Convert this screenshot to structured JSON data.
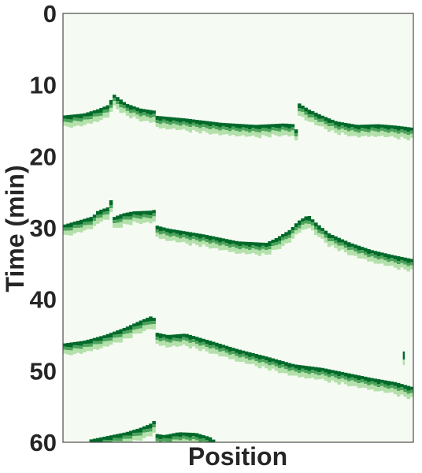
{
  "chart_data": {
    "type": "heatmap",
    "title": "",
    "xlabel": "Position",
    "ylabel": "Time (min)",
    "x_tick_labels": [],
    "y_axis": {
      "inverted": true,
      "range": [
        0,
        60
      ],
      "ticks": [
        0,
        10,
        20,
        30,
        40,
        50,
        60
      ]
    },
    "x_range": [
      0,
      1
    ],
    "grid": false,
    "legend": "none",
    "colormap": "Greens",
    "colors": {
      "background": "#f5fbf2",
      "light": "#b4e0ab",
      "mid": "#4ba35a",
      "dark": "#00692a",
      "frame": "#4d4d4d",
      "text": "#262626"
    },
    "bands": [
      {
        "name": "",
        "breaks": [],
        "trace": [
          [
            0.0,
            14.3
          ],
          [
            0.06,
            14.0
          ],
          [
            0.1,
            13.4
          ],
          [
            0.13,
            12.8
          ],
          [
            0.14,
            11.8
          ],
          [
            0.135,
            11.0
          ],
          [
            0.15,
            11.5
          ],
          [
            0.18,
            12.6
          ],
          [
            0.22,
            13.3
          ],
          [
            0.26,
            13.6
          ],
          [
            0.261,
            14.3
          ],
          [
            0.35,
            14.7
          ],
          [
            0.45,
            15.3
          ],
          [
            0.55,
            15.6
          ],
          [
            0.63,
            15.4
          ],
          [
            0.66,
            15.5
          ],
          [
            0.667,
            16.5
          ],
          [
            0.668,
            12.4
          ],
          [
            0.7,
            13.4
          ],
          [
            0.74,
            14.3
          ],
          [
            0.78,
            15.1
          ],
          [
            0.84,
            15.6
          ],
          [
            0.9,
            15.5
          ],
          [
            0.95,
            15.7
          ],
          [
            1.0,
            16.0
          ]
        ]
      },
      {
        "name": "",
        "breaks": [],
        "trace": [
          [
            0.0,
            29.6
          ],
          [
            0.05,
            28.9
          ],
          [
            0.085,
            28.4
          ],
          [
            0.1,
            27.6
          ],
          [
            0.13,
            27.1
          ],
          [
            0.131,
            25.5
          ],
          [
            0.14,
            26.5
          ],
          [
            0.145,
            28.5
          ],
          [
            0.17,
            28.0
          ],
          [
            0.2,
            27.7
          ],
          [
            0.25,
            27.6
          ],
          [
            0.26,
            27.5
          ],
          [
            0.261,
            29.6
          ],
          [
            0.3,
            30.1
          ],
          [
            0.4,
            30.9
          ],
          [
            0.5,
            31.9
          ],
          [
            0.58,
            32.1
          ],
          [
            0.61,
            31.4
          ],
          [
            0.65,
            30.2
          ],
          [
            0.67,
            29.1
          ],
          [
            0.7,
            28.2
          ],
          [
            0.72,
            29.2
          ],
          [
            0.76,
            30.8
          ],
          [
            0.82,
            32.1
          ],
          [
            0.88,
            33.1
          ],
          [
            0.94,
            33.8
          ],
          [
            1.0,
            34.4
          ]
        ]
      },
      {
        "name": "",
        "breaks": [],
        "trace": [
          [
            0.0,
            46.2
          ],
          [
            0.06,
            45.8
          ],
          [
            0.12,
            45.0
          ],
          [
            0.18,
            43.9
          ],
          [
            0.22,
            43.0
          ],
          [
            0.25,
            42.4
          ],
          [
            0.26,
            42.6
          ],
          [
            0.261,
            44.6
          ],
          [
            0.3,
            45.0
          ],
          [
            0.35,
            44.8
          ],
          [
            0.42,
            45.8
          ],
          [
            0.5,
            47.0
          ],
          [
            0.58,
            48.0
          ],
          [
            0.66,
            49.1
          ],
          [
            0.74,
            49.6
          ],
          [
            0.8,
            50.2
          ],
          [
            0.88,
            51.0
          ],
          [
            0.95,
            51.6
          ],
          [
            0.97,
            51.9
          ],
          [
            1.0,
            52.3
          ]
        ],
        "blip": [
          0.97,
          47.3,
          49.2
        ]
      },
      {
        "name": "",
        "breaks": [],
        "trace": [
          [
            0.08,
            59.6
          ],
          [
            0.13,
            59.1
          ],
          [
            0.18,
            58.6
          ],
          [
            0.22,
            58.0
          ],
          [
            0.25,
            57.4
          ],
          [
            0.26,
            57.0
          ],
          [
            0.261,
            58.8
          ],
          [
            0.29,
            59.0
          ],
          [
            0.33,
            58.6
          ],
          [
            0.38,
            58.7
          ],
          [
            0.42,
            59.3
          ],
          [
            0.44,
            60.0
          ]
        ]
      }
    ]
  }
}
